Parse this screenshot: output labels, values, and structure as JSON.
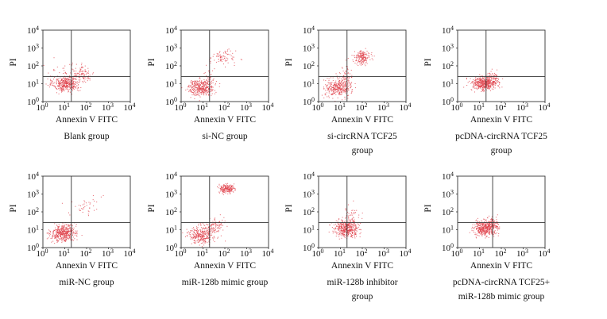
{
  "chart_data": [
    {
      "type": "scatter",
      "title": "Blank group",
      "xlabel": "Annexin V FITC",
      "ylabel": "PI",
      "xscale": "log",
      "yscale": "log",
      "xlim": [
        1,
        10000
      ],
      "ylim": [
        1,
        10000
      ],
      "xticks": [
        "10",
        "10",
        "10",
        "10",
        "10"
      ],
      "xticks_exp": [
        "0",
        "1",
        "2",
        "3",
        "4"
      ],
      "yticks": [
        "10",
        "10",
        "10",
        "10",
        "10"
      ],
      "yticks_exp": [
        "0",
        "1",
        "2",
        "3",
        "4"
      ],
      "gate": {
        "x": 20,
        "y": 25
      },
      "point_color": "#e0454f",
      "clusters": [
        {
          "x": 12,
          "y": 10,
          "sx": 0.3,
          "sy": 0.22,
          "n": 380
        },
        {
          "x": 60,
          "y": 40,
          "sx": 0.3,
          "sy": 0.25,
          "n": 100
        },
        {
          "x": 6,
          "y": 25,
          "sx": 0.4,
          "sy": 0.35,
          "n": 40
        }
      ]
    },
    {
      "type": "scatter",
      "title": "si-NC group",
      "xlabel": "Annexin V FITC",
      "ylabel": "PI",
      "xscale": "log",
      "yscale": "log",
      "xlim": [
        1,
        10000
      ],
      "ylim": [
        1,
        10000
      ],
      "xticks": [
        "10",
        "10",
        "10",
        "10",
        "10"
      ],
      "xticks_exp": [
        "0",
        "1",
        "2",
        "3",
        "4"
      ],
      "yticks": [
        "10",
        "10",
        "10",
        "10",
        "10"
      ],
      "yticks_exp": [
        "0",
        "1",
        "2",
        "3",
        "4"
      ],
      "gate": {
        "x": 20,
        "y": 25
      },
      "point_color": "#e0454f",
      "clusters": [
        {
          "x": 8,
          "y": 6,
          "sx": 0.3,
          "sy": 0.22,
          "n": 350
        },
        {
          "x": 20,
          "y": 15,
          "sx": 0.12,
          "sy": 0.35,
          "n": 60
        },
        {
          "x": 80,
          "y": 300,
          "sx": 0.3,
          "sy": 0.2,
          "n": 80
        }
      ]
    },
    {
      "type": "scatter",
      "title": "si-circRNA TCF25",
      "subtitle": "group",
      "xlabel": "Annexin V FITC",
      "ylabel": "PI",
      "xscale": "log",
      "yscale": "log",
      "xlim": [
        1,
        10000
      ],
      "ylim": [
        1,
        10000
      ],
      "xticks": [
        "10",
        "10",
        "10",
        "10",
        "10"
      ],
      "xticks_exp": [
        "0",
        "1",
        "2",
        "3",
        "4"
      ],
      "yticks": [
        "10",
        "10",
        "10",
        "10",
        "10"
      ],
      "yticks_exp": [
        "0",
        "1",
        "2",
        "3",
        "4"
      ],
      "gate": {
        "x": 20,
        "y": 25
      },
      "point_color": "#e0454f",
      "clusters": [
        {
          "x": 8,
          "y": 6,
          "sx": 0.3,
          "sy": 0.25,
          "n": 330
        },
        {
          "x": 18,
          "y": 18,
          "sx": 0.15,
          "sy": 0.35,
          "n": 70
        },
        {
          "x": 100,
          "y": 300,
          "sx": 0.18,
          "sy": 0.18,
          "n": 180
        }
      ]
    },
    {
      "type": "scatter",
      "title": "pcDNA-circRNA TCF25",
      "subtitle": "group",
      "xlabel": "Annexin V FITC",
      "ylabel": "PI",
      "xscale": "log",
      "yscale": "log",
      "xlim": [
        1,
        10000
      ],
      "ylim": [
        1,
        10000
      ],
      "xticks": [
        "10",
        "10",
        "10",
        "10",
        "10"
      ],
      "xticks_exp": [
        "0",
        "1",
        "2",
        "3",
        "4"
      ],
      "yticks": [
        "10",
        "10",
        "10",
        "10",
        "10"
      ],
      "yticks_exp": [
        "0",
        "1",
        "2",
        "3",
        "4"
      ],
      "gate": {
        "x": 20,
        "y": 25
      },
      "point_color": "#e0454f",
      "clusters": [
        {
          "x": 15,
          "y": 10,
          "sx": 0.28,
          "sy": 0.2,
          "n": 420
        },
        {
          "x": 40,
          "y": 18,
          "sx": 0.2,
          "sy": 0.2,
          "n": 100
        }
      ]
    },
    {
      "type": "scatter",
      "title": "miR-NC group",
      "xlabel": "Annexin V FITC",
      "ylabel": "PI",
      "xscale": "log",
      "yscale": "log",
      "xlim": [
        1,
        10000
      ],
      "ylim": [
        1,
        10000
      ],
      "xticks": [
        "10",
        "10",
        "10",
        "10",
        "10"
      ],
      "xticks_exp": [
        "0",
        "1",
        "2",
        "3",
        "4"
      ],
      "yticks": [
        "10",
        "10",
        "10",
        "10",
        "10"
      ],
      "yticks_exp": [
        "0",
        "1",
        "2",
        "3",
        "4"
      ],
      "gate": {
        "x": 20,
        "y": 25
      },
      "point_color": "#e0454f",
      "clusters": [
        {
          "x": 8,
          "y": 6,
          "sx": 0.28,
          "sy": 0.22,
          "n": 380
        },
        {
          "x": 15,
          "y": 10,
          "sx": 0.15,
          "sy": 0.2,
          "n": 80
        },
        {
          "x": 100,
          "y": 200,
          "sx": 0.35,
          "sy": 0.3,
          "n": 40
        }
      ]
    },
    {
      "type": "scatter",
      "title": "miR-128b mimic group",
      "xlabel": "Annexin V FITC",
      "ylabel": "PI",
      "xscale": "log",
      "yscale": "log",
      "xlim": [
        1,
        10000
      ],
      "ylim": [
        1,
        10000
      ],
      "xticks": [
        "10",
        "10",
        "10",
        "10",
        "10"
      ],
      "xticks_exp": [
        "0",
        "1",
        "2",
        "3",
        "4"
      ],
      "yticks": [
        "10",
        "10",
        "10",
        "10",
        "10"
      ],
      "yticks_exp": [
        "0",
        "1",
        "2",
        "3",
        "4"
      ],
      "gate": {
        "x": 20,
        "y": 25
      },
      "point_color": "#e0454f",
      "clusters": [
        {
          "x": 8,
          "y": 5,
          "sx": 0.3,
          "sy": 0.25,
          "n": 300
        },
        {
          "x": 30,
          "y": 15,
          "sx": 0.25,
          "sy": 0.22,
          "n": 110
        },
        {
          "x": 120,
          "y": 2000,
          "sx": 0.17,
          "sy": 0.12,
          "n": 200
        }
      ]
    },
    {
      "type": "scatter",
      "title": "miR-128b inhibitor",
      "subtitle": "group",
      "xlabel": "Annexin V FITC",
      "ylabel": "PI",
      "xscale": "log",
      "yscale": "log",
      "xlim": [
        1,
        10000
      ],
      "ylim": [
        1,
        10000
      ],
      "xticks": [
        "10",
        "10",
        "10",
        "10",
        "10"
      ],
      "xticks_exp": [
        "0",
        "1",
        "2",
        "3",
        "4"
      ],
      "yticks": [
        "10",
        "10",
        "10",
        "10",
        "10"
      ],
      "yticks_exp": [
        "0",
        "1",
        "2",
        "3",
        "4"
      ],
      "gate": {
        "x": 20,
        "y": 25
      },
      "point_color": "#e0454f",
      "clusters": [
        {
          "x": 20,
          "y": 12,
          "sx": 0.28,
          "sy": 0.22,
          "n": 460
        },
        {
          "x": 30,
          "y": 80,
          "sx": 0.2,
          "sy": 0.3,
          "n": 40
        }
      ]
    },
    {
      "type": "scatter",
      "title": "pcDNA-circRNA TCF25+",
      "subtitle": "miR-128b mimic group",
      "xlabel": "Annexin V FITC",
      "ylabel": "PI",
      "xscale": "log",
      "yscale": "log",
      "xlim": [
        1,
        10000
      ],
      "ylim": [
        1,
        10000
      ],
      "xticks": [
        "10",
        "10",
        "10",
        "10",
        "10"
      ],
      "xticks_exp": [
        "0",
        "1",
        "2",
        "3",
        "4"
      ],
      "yticks": [
        "10",
        "10",
        "10",
        "10",
        "10"
      ],
      "yticks_exp": [
        "0",
        "1",
        "2",
        "3",
        "4"
      ],
      "gate": {
        "x": 40,
        "y": 25
      },
      "point_color": "#e0454f",
      "clusters": [
        {
          "x": 18,
          "y": 12,
          "sx": 0.26,
          "sy": 0.2,
          "n": 420
        },
        {
          "x": 40,
          "y": 20,
          "sx": 0.15,
          "sy": 0.2,
          "n": 100
        }
      ]
    }
  ]
}
